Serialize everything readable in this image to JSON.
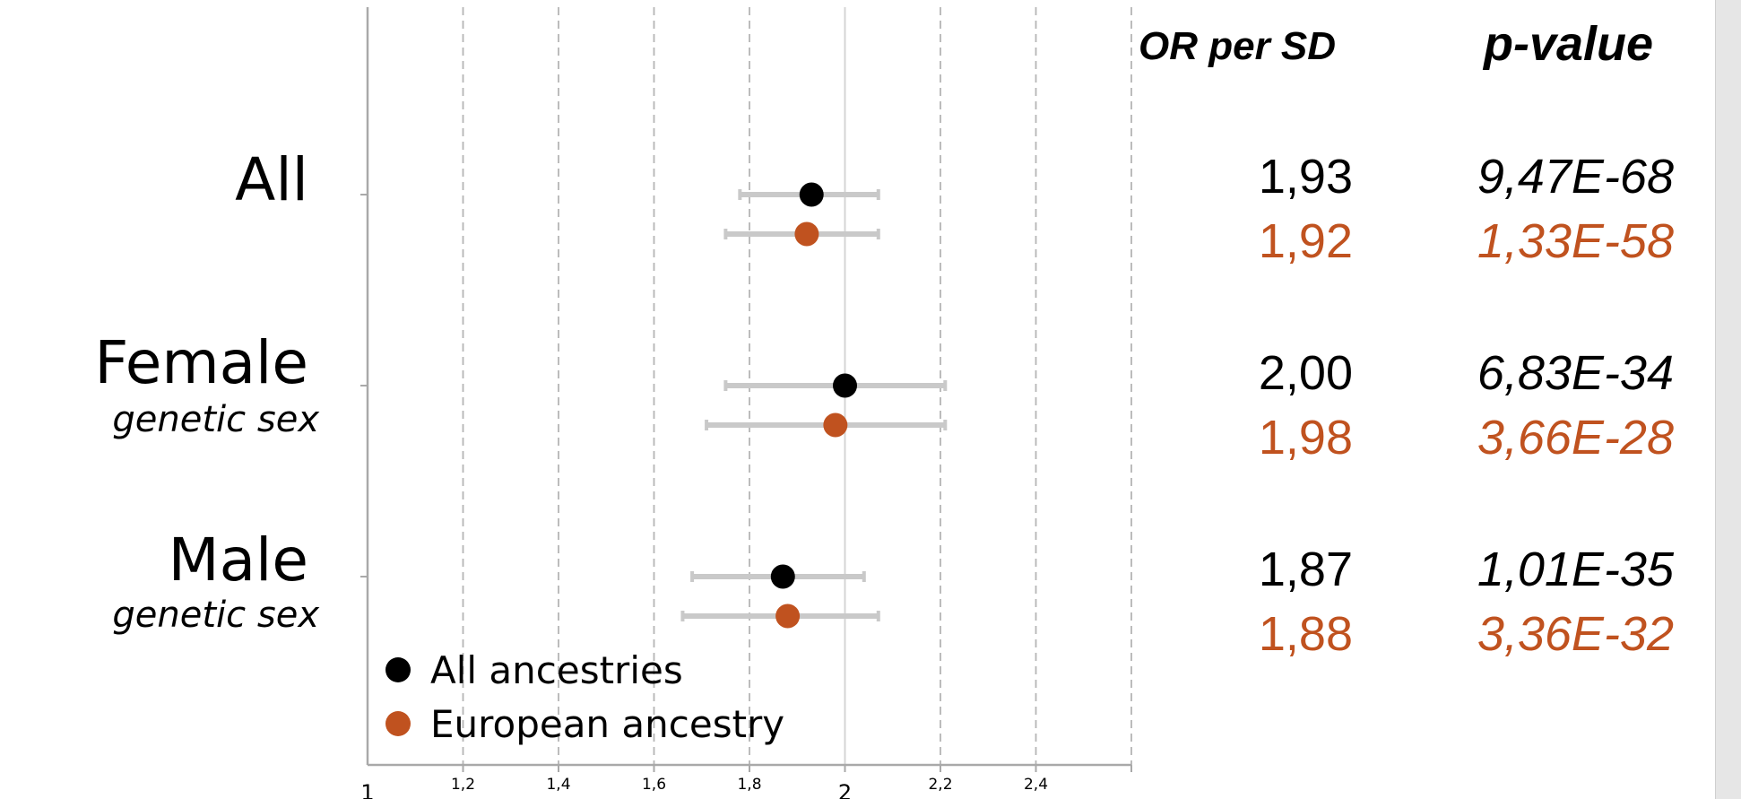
{
  "colors": {
    "all_ancestries": "#000000",
    "european": "#c0521f",
    "ci_bar": "#c9c9c9",
    "grid": "#b5b5b5"
  },
  "chart_data": {
    "type": "scatter",
    "subtype": "forest-plot",
    "categories": [
      "All",
      "Female",
      "Male"
    ],
    "category_sublabels": [
      "",
      "genetic sex",
      "genetic sex"
    ],
    "xlim": [
      1,
      2.6
    ],
    "x_ticks": [
      "1",
      "1,2",
      "1,4",
      "1,6",
      "1,8",
      "2",
      "2,2",
      "2,4"
    ],
    "x_tick_values": [
      1,
      1.2,
      1.4,
      1.6,
      1.8,
      2,
      2.2,
      2.4
    ],
    "grid": "vertical dashed",
    "legend_position": "bottom-left",
    "series": [
      {
        "name": "All ancestries",
        "color": "#000000",
        "values": [
          1.93,
          2.0,
          1.87
        ],
        "ci_low": [
          1.78,
          1.75,
          1.68
        ],
        "ci_high": [
          2.07,
          2.21,
          2.04
        ],
        "or_labels": [
          "1,93",
          "2,00",
          "1,87"
        ],
        "p_values": [
          "9,47E-68",
          "6,83E-34",
          "1,01E-35"
        ]
      },
      {
        "name": "European ancestry",
        "color": "#c0521f",
        "values": [
          1.92,
          1.98,
          1.88
        ],
        "ci_low": [
          1.75,
          1.71,
          1.66
        ],
        "ci_high": [
          2.07,
          2.21,
          2.07
        ],
        "or_labels": [
          "1,92",
          "1,98",
          "1,88"
        ],
        "p_values": [
          "1,33E-58",
          "3,66E-28",
          "3,36E-32"
        ]
      }
    ],
    "column_headers": {
      "or": "OR per SD",
      "p": "p-value"
    }
  }
}
